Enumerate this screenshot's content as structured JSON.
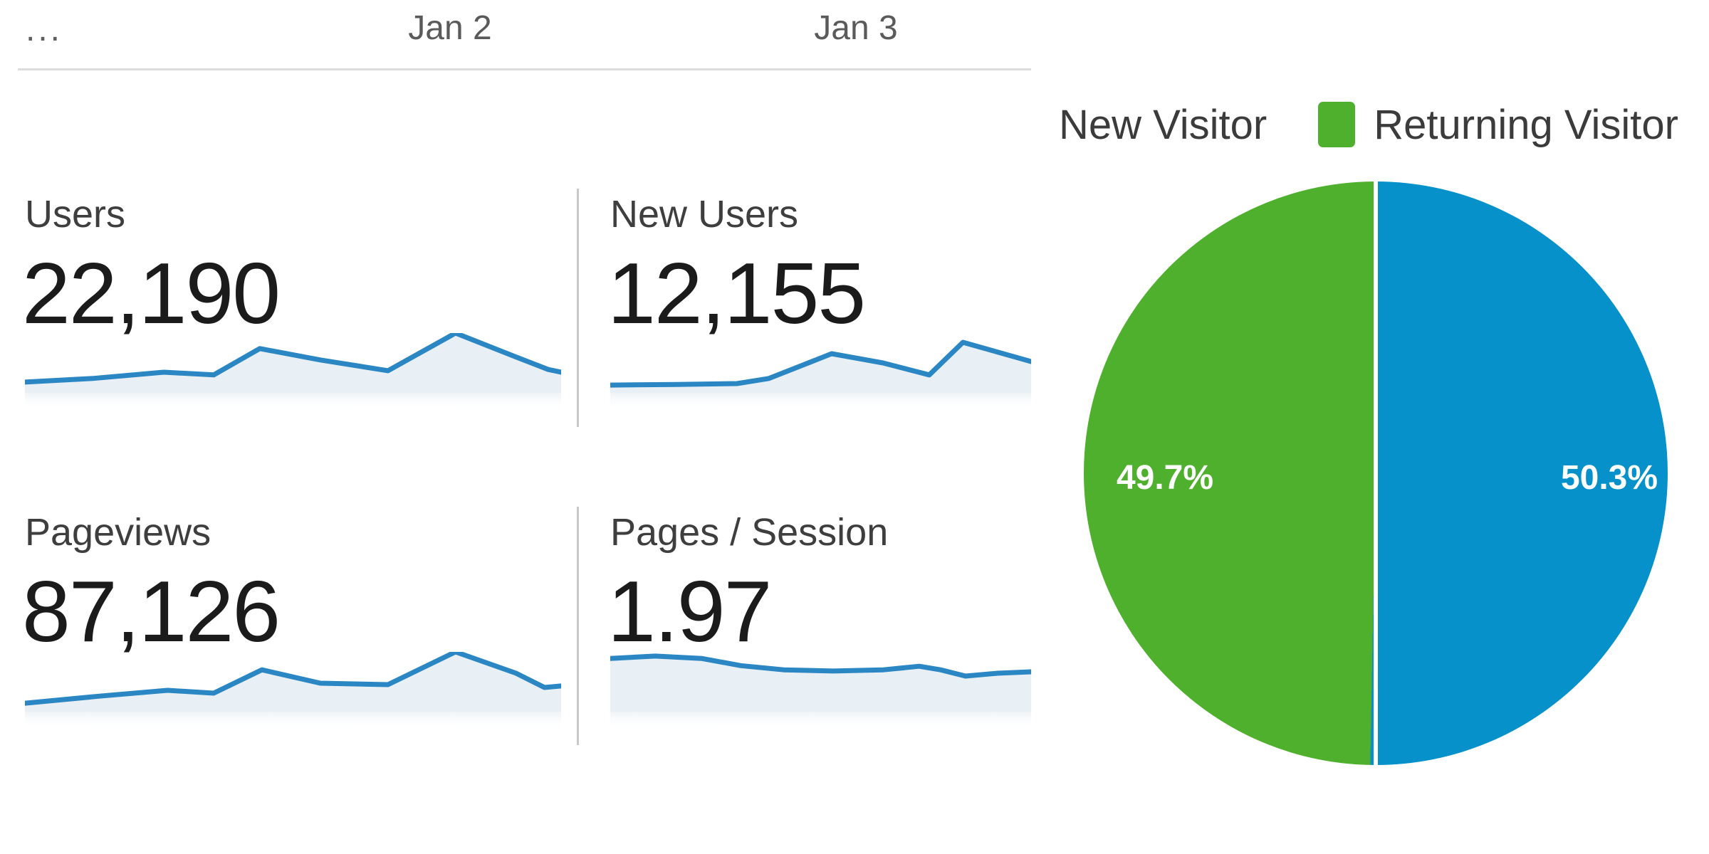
{
  "timeline": {
    "ellipsis": "...",
    "ticks": [
      "Jan 2",
      "Jan 3"
    ]
  },
  "legend": {
    "items": [
      {
        "label": "New Visitor",
        "color": "#0791cb",
        "swatch_visible": false
      },
      {
        "label": "Returning Visitor",
        "color": "#4fb02d",
        "swatch_visible": true
      }
    ]
  },
  "metric_cards": [
    {
      "label": "Users",
      "value": "22,190"
    },
    {
      "label": "New Users",
      "value": "12,155"
    },
    {
      "label": "Pageviews",
      "value": "87,126"
    },
    {
      "label": "Pages / Session",
      "value": "1.97"
    }
  ],
  "colors": {
    "spark_line": "#2b87c4",
    "spark_fill": "#e9f0f5",
    "pie_blue": "#0791cb",
    "pie_green": "#4fb02d",
    "axis_text": "#5a5a5a",
    "label_text": "#3e3e3e",
    "value_text": "#1b1b1b"
  },
  "chart_data": [
    {
      "type": "area",
      "name": "users-sparkline",
      "metric": "Users",
      "metric_value": 22190,
      "points": [
        [
          0,
          0.18
        ],
        [
          0.126,
          0.24
        ],
        [
          0.259,
          0.345
        ],
        [
          0.352,
          0.3
        ],
        [
          0.438,
          0.74
        ],
        [
          0.551,
          0.55
        ],
        [
          0.677,
          0.37
        ],
        [
          0.803,
          1.0
        ],
        [
          0.91,
          0.62
        ],
        [
          0.976,
          0.39
        ],
        [
          1,
          0.345
        ]
      ]
    },
    {
      "type": "area",
      "name": "new-users-sparkline",
      "metric": "New Users",
      "metric_value": 12155,
      "points": [
        [
          0,
          0.13
        ],
        [
          0.157,
          0.14
        ],
        [
          0.301,
          0.155
        ],
        [
          0.377,
          0.24
        ],
        [
          0.526,
          0.655
        ],
        [
          0.648,
          0.5
        ],
        [
          0.758,
          0.3
        ],
        [
          0.838,
          0.845
        ],
        [
          1,
          0.524
        ]
      ]
    },
    {
      "type": "area",
      "name": "pageviews-sparkline",
      "metric": "Pageviews",
      "metric_value": 87126,
      "points": [
        [
          0,
          0.14
        ],
        [
          0.139,
          0.26
        ],
        [
          0.266,
          0.357
        ],
        [
          0.352,
          0.31
        ],
        [
          0.442,
          0.7
        ],
        [
          0.551,
          0.476
        ],
        [
          0.677,
          0.452
        ],
        [
          0.803,
          1.0
        ],
        [
          0.916,
          0.643
        ],
        [
          0.969,
          0.405
        ],
        [
          1,
          0.43
        ]
      ]
    },
    {
      "type": "area",
      "name": "pages-per-session-sparkline",
      "metric": "Pages / Session",
      "metric_value": 1.97,
      "points": [
        [
          0,
          0.89
        ],
        [
          0.107,
          0.93
        ],
        [
          0.217,
          0.89
        ],
        [
          0.31,
          0.77
        ],
        [
          0.412,
          0.7
        ],
        [
          0.53,
          0.68
        ],
        [
          0.649,
          0.7
        ],
        [
          0.734,
          0.76
        ],
        [
          0.785,
          0.7
        ],
        [
          0.844,
          0.595
        ],
        [
          0.92,
          0.643
        ],
        [
          1,
          0.667
        ]
      ]
    },
    {
      "type": "pie",
      "name": "visitor-type-pie",
      "labels": [
        "New Visitor",
        "Returning Visitor"
      ],
      "values": [
        50.3,
        49.7
      ],
      "display": [
        "50.3%",
        "49.7%"
      ],
      "colors": [
        "#0791cb",
        "#4fb02d"
      ],
      "legend_position": "top-right",
      "label_color": "#ffffff"
    }
  ]
}
